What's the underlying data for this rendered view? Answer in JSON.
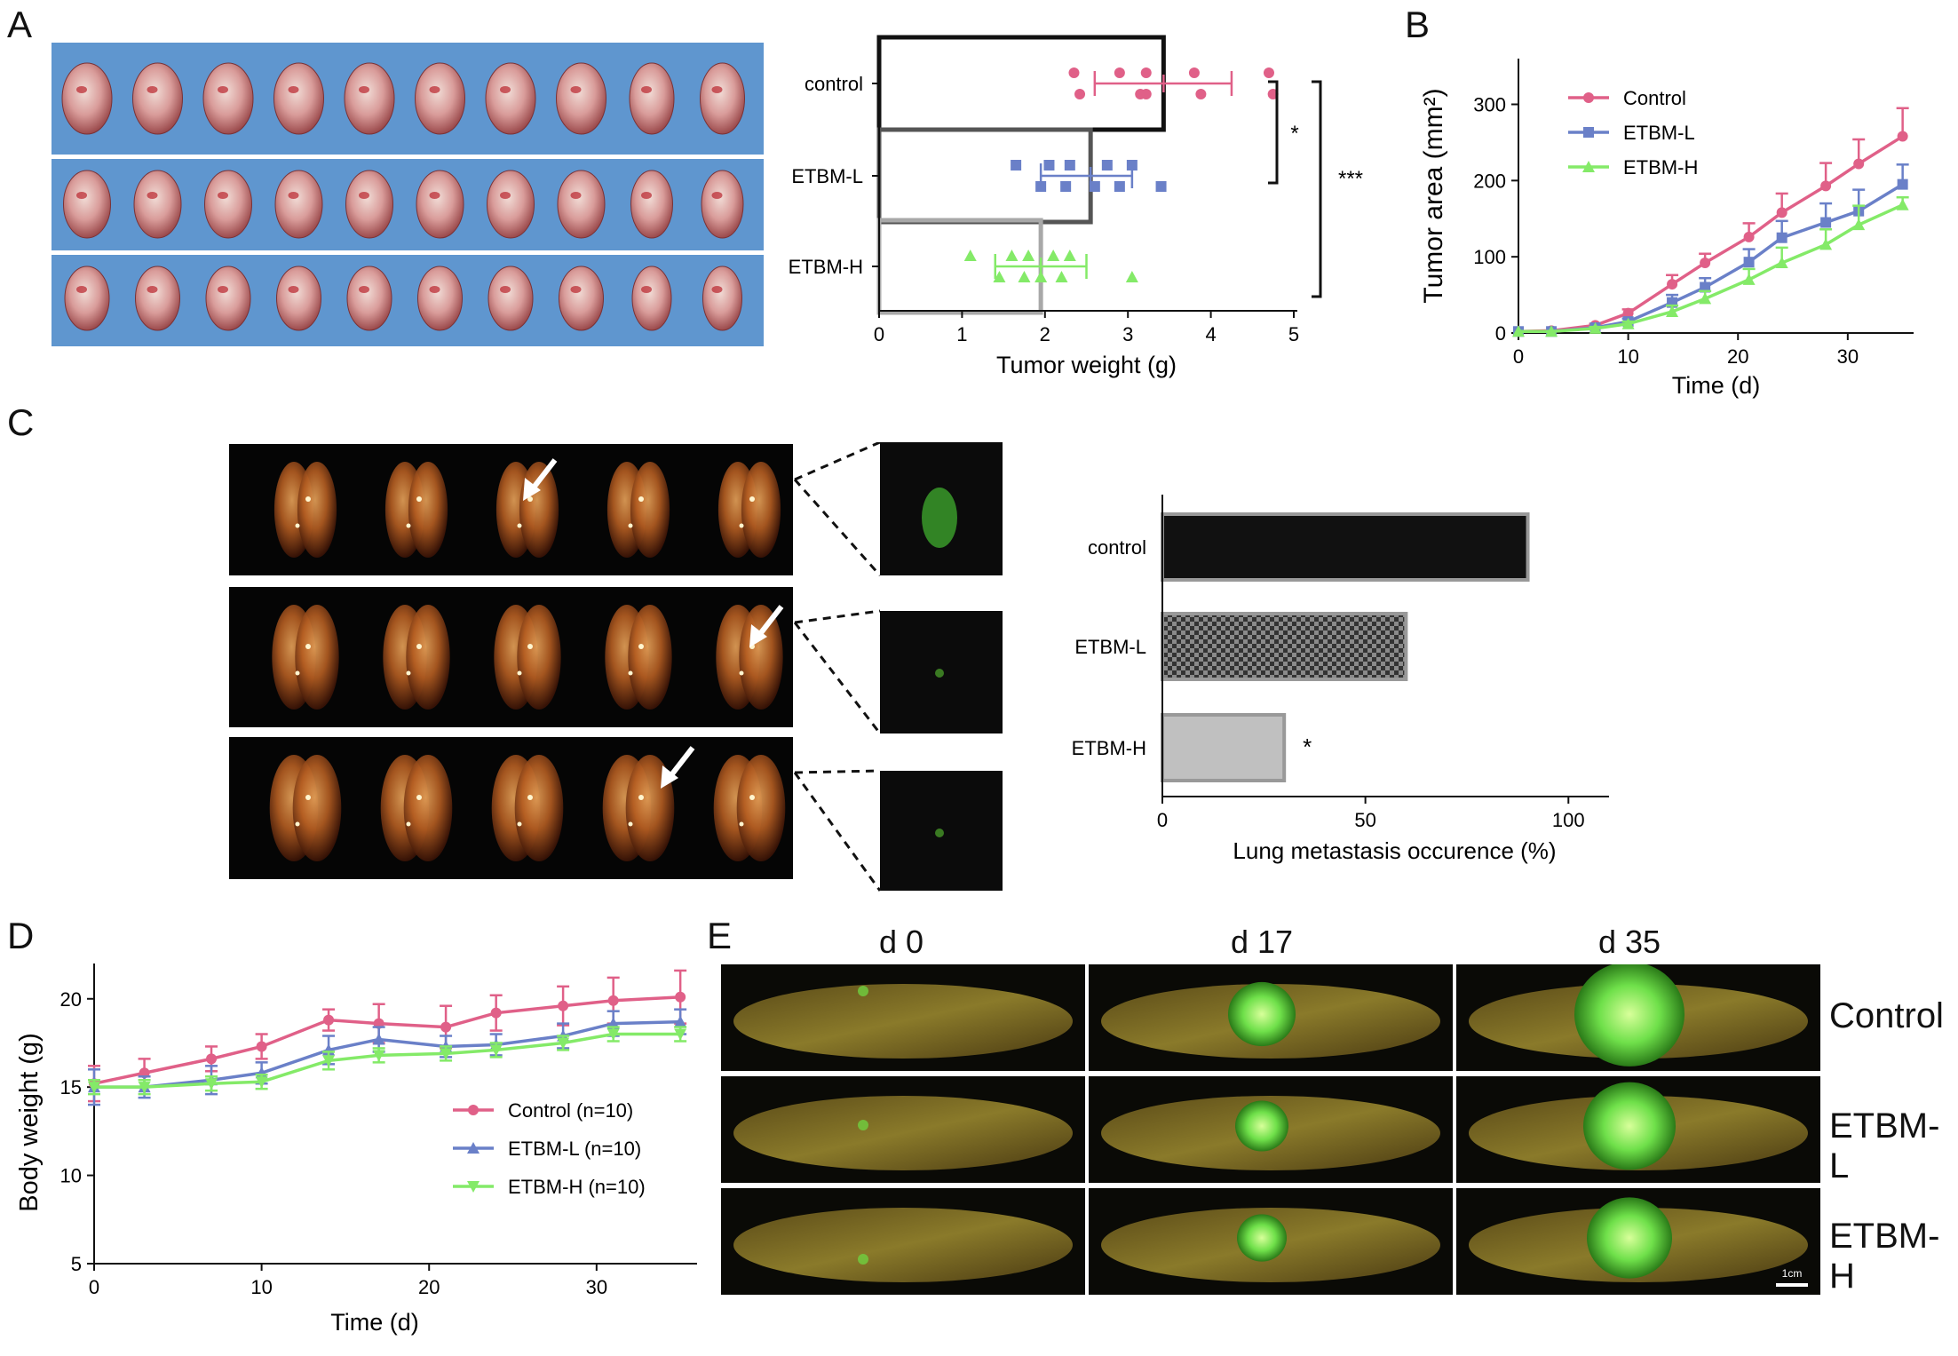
{
  "panel_labels": [
    "A",
    "B",
    "C",
    "D",
    "E"
  ],
  "colors": {
    "control": "#e06088",
    "etbm_l": "#6a80c8",
    "etbm_h": "#84ea68",
    "tray_blue": "#5f96cf",
    "dark": "#111111",
    "grey": "#9a9a9a"
  },
  "chart_data": [
    {
      "id": "A-tumor-weight",
      "type": "bar",
      "orientation": "horizontal",
      "categories": [
        "control",
        "ETBM-L",
        "ETBM-H"
      ],
      "values": [
        3.43,
        2.55,
        1.95
      ],
      "error_range": [
        [
          2.6,
          4.25
        ],
        [
          1.95,
          3.05
        ],
        [
          1.4,
          2.5
        ]
      ],
      "points": [
        [
          2.35,
          2.42,
          2.9,
          3.15,
          3.22,
          3.22,
          3.8,
          3.88,
          4.7,
          4.75
        ],
        [
          1.65,
          1.95,
          2.05,
          2.25,
          2.3,
          2.6,
          2.75,
          2.9,
          3.05,
          3.4
        ],
        [
          1.1,
          1.45,
          1.6,
          1.75,
          1.8,
          1.95,
          2.1,
          2.2,
          2.3,
          3.05
        ]
      ],
      "xlabel": "Tumor weight (g)",
      "xlim": [
        0,
        5
      ],
      "xticks": [
        0,
        1,
        2,
        3,
        4,
        5
      ],
      "significance": [
        {
          "between": [
            "control",
            "ETBM-L"
          ],
          "label": "*"
        },
        {
          "between": [
            "control",
            "ETBM-H"
          ],
          "label": "***"
        }
      ]
    },
    {
      "id": "B-tumor-area",
      "type": "line",
      "x": [
        0,
        3,
        7,
        10,
        14,
        17,
        21,
        24,
        28,
        31,
        35
      ],
      "series": [
        {
          "name": "Control",
          "values": [
            2,
            3,
            10,
            26,
            64,
            92,
            126,
            158,
            193,
            222,
            258
          ],
          "error": [
            0,
            0,
            2,
            5,
            12,
            12,
            18,
            25,
            30,
            32,
            37
          ]
        },
        {
          "name": "ETBM-L",
          "values": [
            2,
            2,
            7,
            15,
            40,
            60,
            93,
            125,
            145,
            160,
            195
          ],
          "error": [
            0,
            0,
            2,
            4,
            10,
            12,
            17,
            22,
            25,
            28,
            26
          ]
        },
        {
          "name": "ETBM-H",
          "values": [
            2,
            2,
            6,
            12,
            28,
            45,
            70,
            92,
            116,
            142,
            168
          ],
          "error": [
            0,
            0,
            2,
            3,
            8,
            10,
            14,
            20,
            20,
            25,
            10
          ]
        }
      ],
      "xlabel": "Time (d)",
      "ylabel": "Tumor area (mm²)",
      "xlim": [
        0,
        36
      ],
      "ylim": [
        0,
        360
      ],
      "xticks": [
        0,
        10,
        20,
        30
      ],
      "yticks": [
        0,
        100,
        200,
        300
      ],
      "legend": "top-left"
    },
    {
      "id": "C-lung-metastasis",
      "type": "bar",
      "orientation": "horizontal",
      "categories": [
        "control",
        "ETBM-L",
        "ETBM-H"
      ],
      "values": [
        90,
        60,
        30
      ],
      "xlabel": "Lung metastasis occurence (%)",
      "xlim": [
        0,
        110
      ],
      "xticks": [
        0,
        50,
        100
      ],
      "annotations": [
        {
          "category": "ETBM-H",
          "label": "*"
        }
      ]
    },
    {
      "id": "D-body-weight",
      "type": "line",
      "x": [
        0,
        3,
        7,
        10,
        14,
        17,
        21,
        24,
        28,
        31,
        35
      ],
      "series": [
        {
          "name": "Control (n=10)",
          "values": [
            15.2,
            15.8,
            16.6,
            17.3,
            18.8,
            18.6,
            18.4,
            19.2,
            19.6,
            19.9,
            20.1
          ],
          "error": [
            1.0,
            0.8,
            0.7,
            0.7,
            0.6,
            1.1,
            1.2,
            1.0,
            1.1,
            1.3,
            1.5
          ]
        },
        {
          "name": "ETBM-L (n=10)",
          "values": [
            15.0,
            15.0,
            15.4,
            15.8,
            17.1,
            17.7,
            17.3,
            17.4,
            17.9,
            18.6,
            18.7
          ],
          "error": [
            1.0,
            0.6,
            0.8,
            0.6,
            0.8,
            0.7,
            0.6,
            0.6,
            0.7,
            0.7,
            0.7
          ]
        },
        {
          "name": "ETBM-H (n=10)",
          "values": [
            15.0,
            15.0,
            15.2,
            15.3,
            16.5,
            16.8,
            16.9,
            17.1,
            17.5,
            18.0,
            18.0
          ],
          "error": [
            0.4,
            0.4,
            0.4,
            0.4,
            0.5,
            0.4,
            0.4,
            0.4,
            0.4,
            0.4,
            0.4
          ]
        }
      ],
      "xlabel": "Time (d)",
      "ylabel": "Body weight (g)",
      "xlim": [
        0,
        36
      ],
      "ylim": [
        5,
        22
      ],
      "xticks": [
        0,
        10,
        20,
        30
      ],
      "yticks": [
        5,
        10,
        15,
        20
      ],
      "legend": "bottom-right"
    }
  ],
  "panel_e": {
    "columns": [
      "d 0",
      "d 17",
      "d 35"
    ],
    "rows": [
      "Control",
      "ETBM-L",
      "ETBM-H"
    ],
    "scale_bar": "1cm"
  }
}
